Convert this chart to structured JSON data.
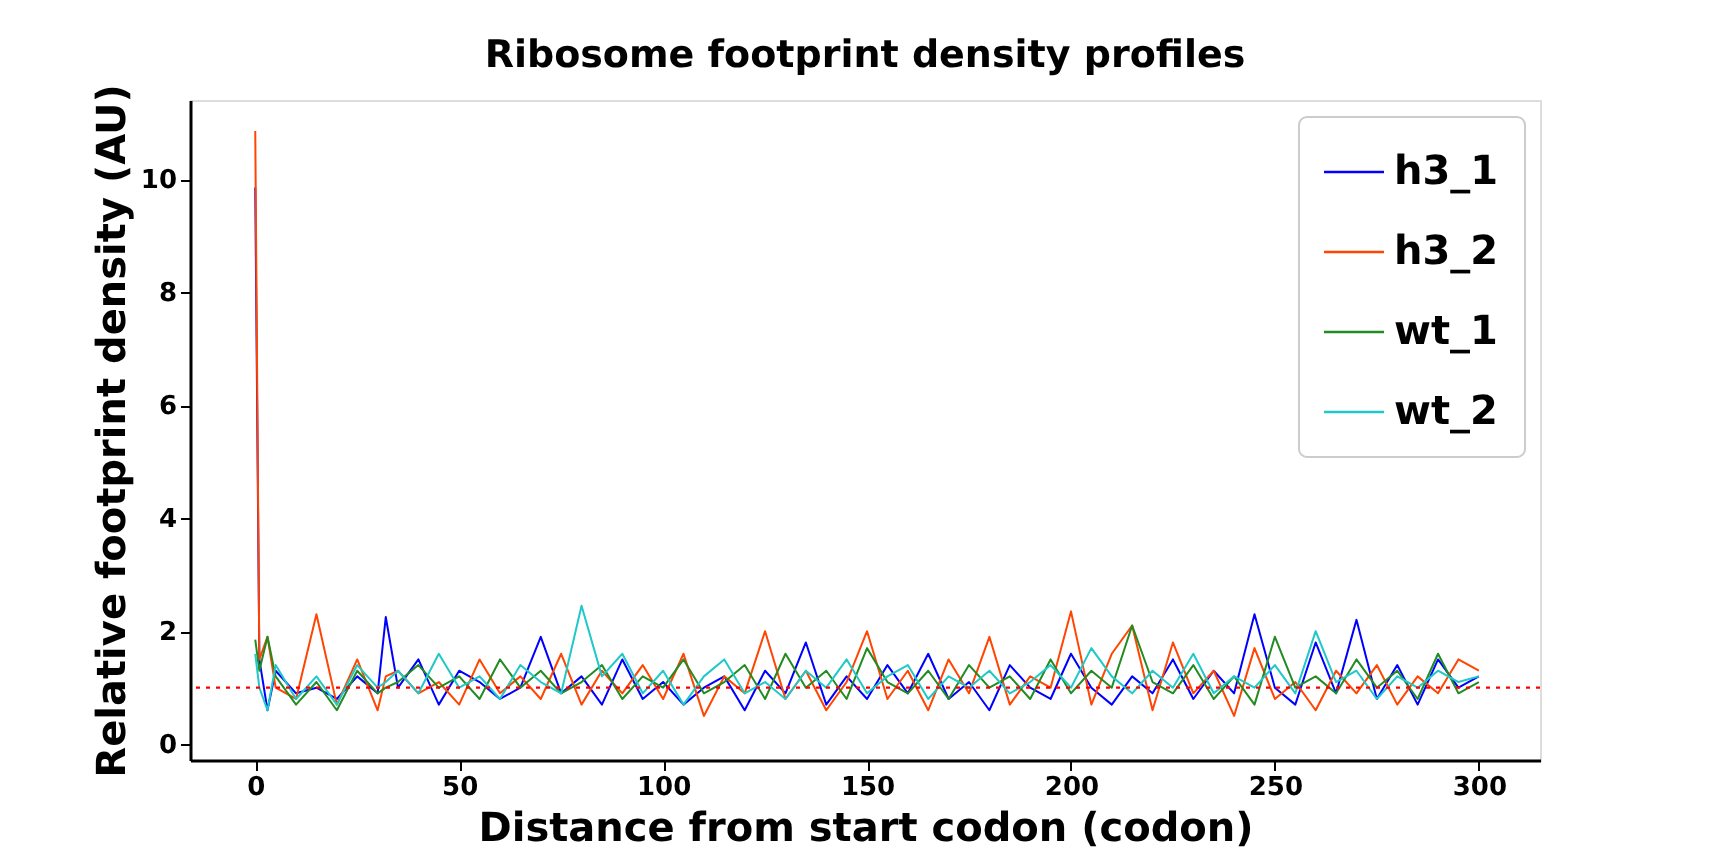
{
  "chart_data": {
    "type": "line",
    "title": "Ribosome footprint density profiles",
    "xlabel": "Distance from start codon (codon)",
    "ylabel": "Relative footprint density (AU)",
    "x": [
      0,
      1,
      3,
      5,
      10,
      15,
      20,
      25,
      30,
      32,
      35,
      40,
      45,
      50,
      55,
      60,
      65,
      70,
      75,
      80,
      85,
      90,
      95,
      100,
      105,
      110,
      115,
      120,
      125,
      130,
      135,
      140,
      145,
      150,
      155,
      160,
      165,
      170,
      175,
      180,
      185,
      190,
      195,
      200,
      205,
      210,
      215,
      220,
      225,
      230,
      235,
      240,
      245,
      250,
      255,
      260,
      265,
      270,
      275,
      280,
      285,
      290,
      295,
      300
    ],
    "series": [
      {
        "name": "h3_1",
        "color": "#0000ff",
        "values": [
          9.85,
          1.5,
          0.6,
          1.3,
          0.9,
          1.0,
          0.8,
          1.2,
          0.9,
          2.25,
          1.0,
          1.5,
          0.7,
          1.3,
          1.1,
          0.8,
          1.0,
          1.9,
          0.9,
          1.2,
          0.7,
          1.5,
          0.8,
          1.1,
          0.7,
          1.0,
          1.2,
          0.6,
          1.3,
          0.9,
          1.8,
          0.7,
          1.2,
          0.8,
          1.4,
          0.9,
          1.6,
          0.8,
          1.1,
          0.6,
          1.4,
          1.0,
          0.8,
          1.6,
          1.0,
          0.7,
          1.2,
          0.9,
          1.5,
          0.8,
          1.3,
          0.9,
          2.3,
          1.0,
          0.7,
          1.8,
          0.9,
          2.2,
          0.8,
          1.4,
          0.7,
          1.5,
          1.0,
          1.2
        ]
      },
      {
        "name": "h3_2",
        "color": "#ff4500",
        "values": [
          10.85,
          1.5,
          1.9,
          1.0,
          0.8,
          2.3,
          0.7,
          1.5,
          0.6,
          1.2,
          1.3,
          0.9,
          1.1,
          0.7,
          1.5,
          0.9,
          1.2,
          0.8,
          1.6,
          0.7,
          1.3,
          0.9,
          1.4,
          0.8,
          1.6,
          0.5,
          1.2,
          0.9,
          2.0,
          0.8,
          1.3,
          0.6,
          1.1,
          2.0,
          0.8,
          1.3,
          0.6,
          1.5,
          0.9,
          1.9,
          0.7,
          1.2,
          1.0,
          2.35,
          0.7,
          1.6,
          2.1,
          0.6,
          1.8,
          0.9,
          1.3,
          0.5,
          1.7,
          0.8,
          1.1,
          0.6,
          1.3,
          0.9,
          1.4,
          0.7,
          1.2,
          0.9,
          1.5,
          1.3
        ]
      },
      {
        "name": "wt_1",
        "color": "#228b22",
        "values": [
          1.85,
          1.3,
          1.9,
          1.2,
          0.7,
          1.1,
          0.6,
          1.3,
          0.9,
          1.0,
          1.1,
          1.4,
          1.0,
          1.2,
          0.8,
          1.5,
          1.0,
          1.3,
          0.9,
          1.1,
          1.4,
          0.8,
          1.2,
          1.0,
          1.5,
          0.9,
          1.1,
          1.4,
          0.8,
          1.6,
          1.0,
          1.3,
          0.8,
          1.7,
          1.1,
          0.9,
          1.3,
          0.8,
          1.4,
          1.0,
          1.2,
          0.8,
          1.5,
          0.9,
          1.3,
          1.0,
          2.1,
          1.1,
          0.9,
          1.4,
          0.8,
          1.2,
          0.7,
          1.9,
          1.0,
          1.2,
          0.9,
          1.5,
          1.0,
          1.3,
          0.8,
          1.6,
          0.9,
          1.1
        ]
      },
      {
        "name": "wt_2",
        "color": "#20c8c8",
        "values": [
          1.6,
          1.0,
          0.6,
          1.4,
          0.8,
          1.2,
          0.7,
          1.4,
          1.0,
          1.1,
          1.3,
          0.9,
          1.6,
          1.0,
          1.2,
          0.8,
          1.4,
          1.1,
          0.9,
          2.45,
          1.2,
          1.6,
          0.9,
          1.3,
          0.7,
          1.2,
          1.5,
          0.9,
          1.1,
          0.8,
          1.3,
          1.0,
          1.5,
          0.9,
          1.2,
          1.4,
          0.8,
          1.2,
          1.0,
          1.3,
          0.9,
          1.1,
          1.4,
          1.0,
          1.7,
          1.2,
          0.9,
          1.3,
          1.0,
          1.6,
          0.9,
          1.2,
          1.0,
          1.4,
          0.9,
          2.0,
          1.1,
          1.3,
          0.8,
          1.2,
          1.0,
          1.3,
          1.1,
          1.2
        ]
      }
    ],
    "xlim": [
      -16,
      315
    ],
    "ylim": [
      -0.28,
      11.4
    ],
    "xticks": [
      0,
      50,
      100,
      150,
      200,
      250,
      300
    ],
    "yticks": [
      0,
      2,
      4,
      6,
      8,
      10
    ],
    "ref_lines": [
      {
        "axis": "y",
        "value": 1,
        "color": "#ff0000",
        "line_style": "dotted"
      }
    ],
    "legend": "top right",
    "grid": false,
    "marker": "none",
    "line_style": "solid"
  }
}
